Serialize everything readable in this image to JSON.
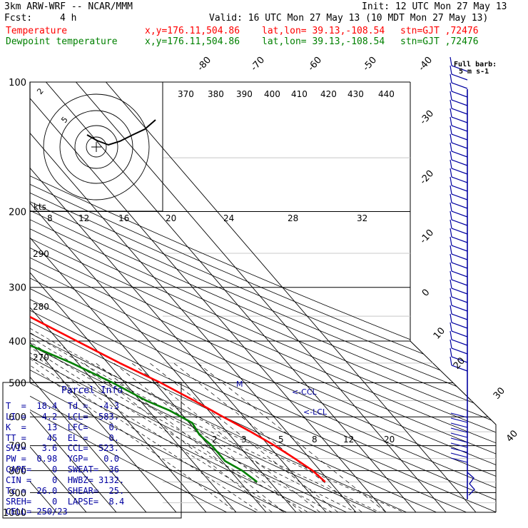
{
  "header": {
    "model": "3km ARW-WRF -- NCAR/MMM",
    "init": "Init: 12 UTC Mon 27 May 13",
    "fcst_label": "Fcst:",
    "fcst_value": "4 h",
    "valid": "Valid: 16 UTC Mon 27 May 13 (10 MDT Mon 27 May 13)"
  },
  "legend": [
    {
      "label": "Temperature",
      "xy": "x,y=176.11,504.86",
      "latlon": "lat,lon= 39.13,-108.54",
      "stn": "stn=GJT ,72476",
      "color": "#ff0000"
    },
    {
      "label": "Dewpoint temperature",
      "xy": "x,y=176.11,504.86",
      "latlon": "lat,lon= 39.13,-108.54",
      "stn": "stn=GJT ,72476",
      "color": "#008000"
    }
  ],
  "barb_key": {
    "line1": "Full barb:",
    "line2": "5 m s-1"
  },
  "parcel_info": {
    "title": "Parcel Info",
    "rows": [
      "T  =  18.4  Td =  -4.3",
      "LI =   4.2  LCL=  583.",
      "K  =    13  LFC=    0.",
      "TT =    45  EL =    0.",
      "SVI=   3.6  CCL=  523.",
      "PW =  0.98  YGP=   0.0",
      "CAPE=    0  SWEAT=  36",
      "CIN =    0  HWBZ= 3132.",
      "Tc =  26.0  SHEAR=  25.",
      "SREH=    0  LAPSE=  8.4",
      "CELL= 250/23"
    ]
  },
  "annotations": {
    "ccl": "<-CCL",
    "lcl": "<-LCL",
    "m": "M",
    "hodo_units": "kts"
  },
  "chart_data": {
    "type": "line",
    "pressure_labels": [
      "100",
      "200",
      "300",
      "400",
      "500",
      "600",
      "700",
      "800",
      "900",
      "1000"
    ],
    "pressure_levels": [
      100,
      200,
      300,
      400,
      500,
      600,
      700,
      800,
      900,
      1000
    ],
    "temperature_labels": [
      "-80",
      "-70",
      "-60",
      "-50",
      "-40",
      "-30",
      "-20",
      "-10",
      "0",
      "10",
      "20",
      "30",
      "40"
    ],
    "temperature_values": [
      -80,
      -70,
      -60,
      -50,
      -40,
      -30,
      -20,
      -10,
      0,
      10,
      20,
      30,
      40
    ],
    "theta_e_labels": [
      "370",
      "380",
      "390",
      "400",
      "410",
      "420",
      "430",
      "440",
      "290",
      "280",
      "270"
    ],
    "mixing_ratio_labels": [
      "2",
      "3",
      "5",
      "8",
      "12",
      "20"
    ],
    "hodograph_speed_labels": [
      "8",
      "12",
      "16",
      "20",
      "24",
      "28",
      "32"
    ],
    "series": [
      {
        "name": "Temperature",
        "color": "#ff0000",
        "pressure": [
          100,
          150,
          200,
          250,
          300,
          350,
          400,
          450,
          500,
          550,
          600,
          650,
          700,
          750,
          800,
          850
        ],
        "temperature": [
          -61,
          -57,
          -55,
          -52,
          -43,
          -33,
          -24,
          -16,
          -8,
          -2,
          3,
          8,
          12,
          15,
          17.5,
          18.4
        ]
      },
      {
        "name": "Dewpoint temperature",
        "color": "#008000",
        "pressure": [
          100,
          120,
          150,
          200,
          240,
          270,
          300,
          350,
          400,
          450,
          500,
          550,
          580,
          620,
          660,
          700,
          760,
          800,
          850
        ],
        "temperature": [
          -82,
          -87,
          -90,
          -83,
          -80,
          -75,
          -65,
          -53,
          -43,
          -32,
          -24,
          -18,
          -13,
          -9,
          -10,
          -9,
          -9,
          -6,
          -4.3
        ]
      }
    ]
  }
}
